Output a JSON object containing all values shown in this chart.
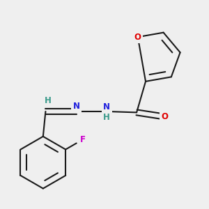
{
  "bg_color": "#efefef",
  "bond_color": "#1a1a1a",
  "bond_width": 1.5,
  "dbo": 0.055,
  "atom_colors": {
    "O": "#e00000",
    "N": "#2020dd",
    "F": "#cc00cc",
    "H": "#3a9a8a",
    "C": "#1a1a1a"
  },
  "font_size": 8.5
}
